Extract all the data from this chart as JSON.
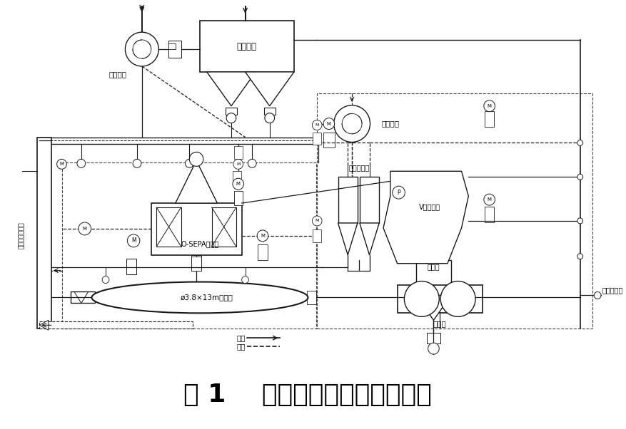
{
  "title": "图 1    水泥粉磨系统的工艺流程",
  "title_fontsize": 26,
  "bg_color": "#ffffff",
  "line_color": "#1a1a1a",
  "labels": {
    "tail_fan": "尾排风机",
    "bag_filter": "袋收尘器",
    "elevator": "至水泥库提升机",
    "sepa": "O-SEPA选粉机",
    "mill": "ø3.8×13m水泥磨",
    "cyclone": "旋风分离器",
    "v_sep": "V型选粉机",
    "middle_bin": "中间仓",
    "roller_press": "辊压机",
    "circ_fan": "循环风机",
    "material_flow": "物料",
    "air_flow": "气流",
    "from_mill": "来自水泥磨"
  }
}
